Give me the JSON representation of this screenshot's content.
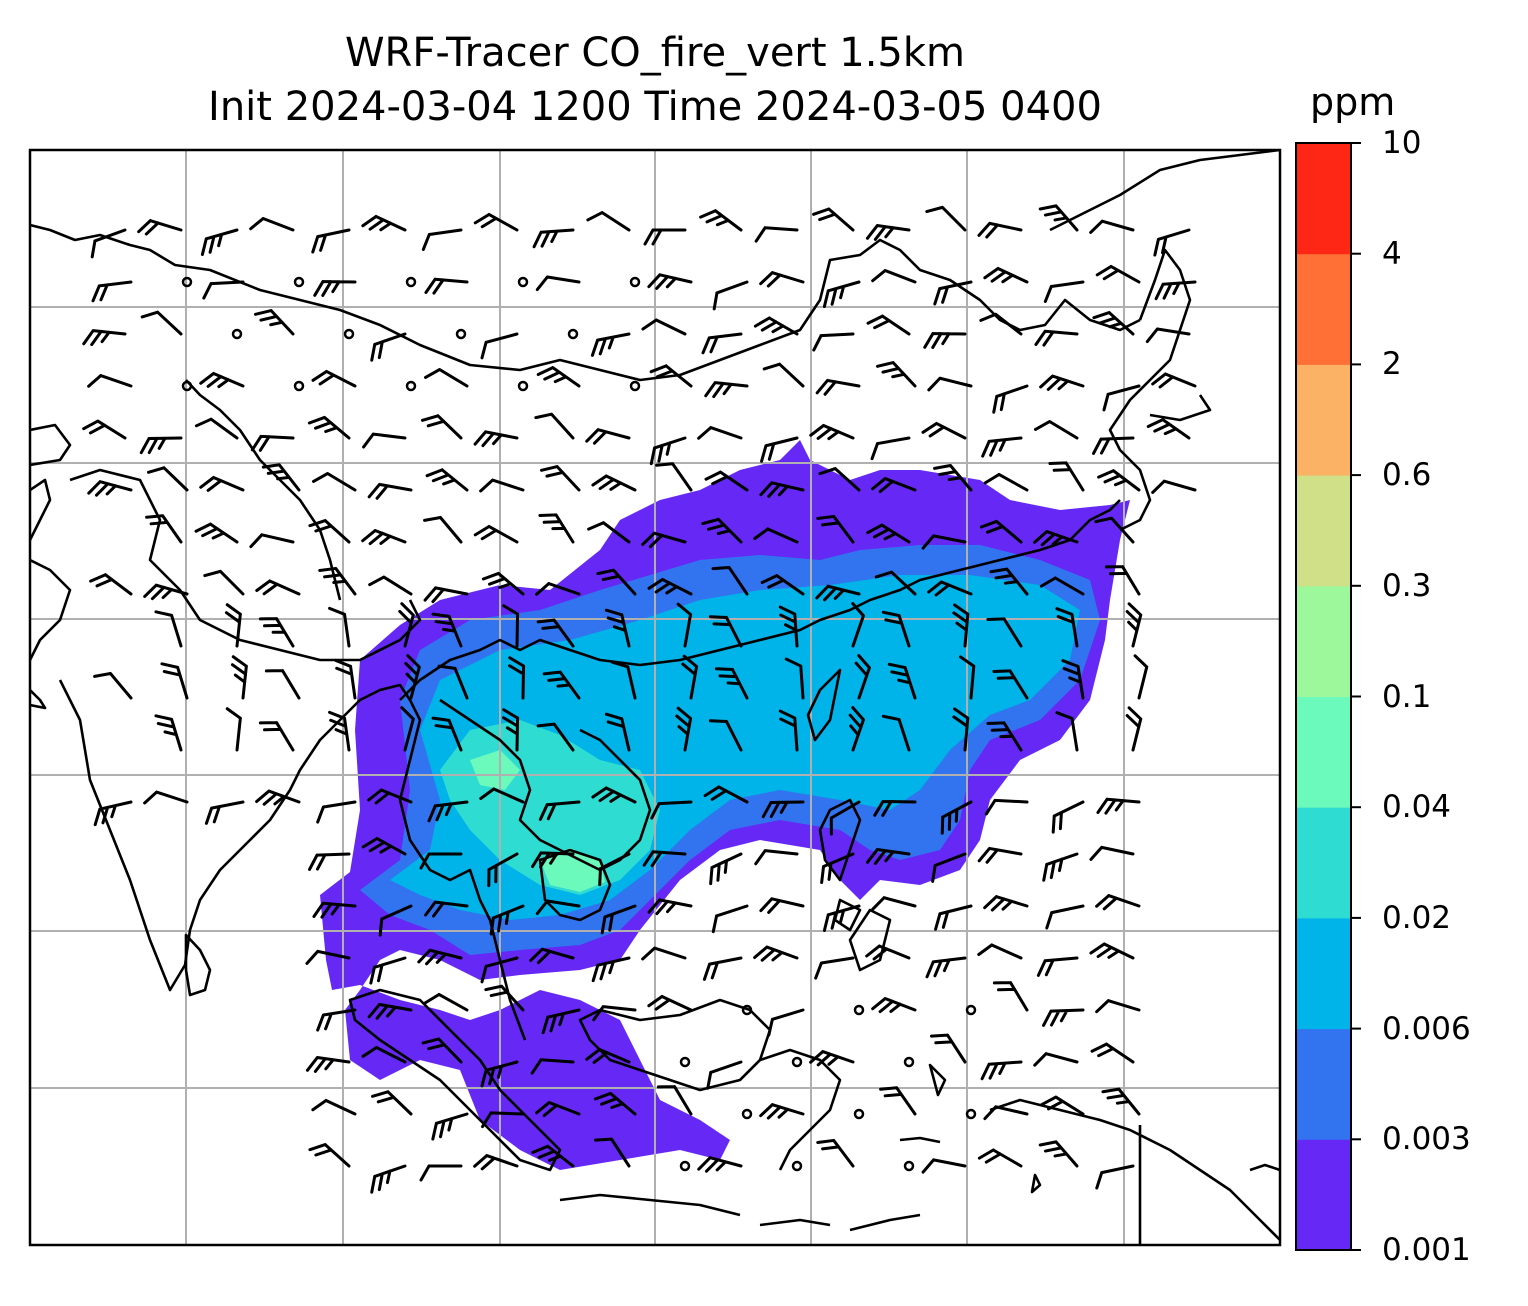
{
  "title": {
    "line1": "WRF-Tracer CO_fire_vert 1.5km",
    "line2": "Init 2024-03-04 1200 Time 2024-03-05 0400"
  },
  "colorbar": {
    "unit": "ppm",
    "levels": [
      "0.001",
      "0.003",
      "0.006",
      "0.02",
      "0.04",
      "0.1",
      "0.3",
      "0.6",
      "2",
      "4",
      "10"
    ],
    "colors": [
      "#6528f5",
      "#3273f0",
      "#00b3e8",
      "#2edcd2",
      "#6bf9bc",
      "#9cf89b",
      "#cfe089",
      "#fbb264",
      "#fe7035",
      "#fe2615"
    ]
  },
  "map": {
    "field": "CO_fire_vert",
    "level": "1.5km",
    "gridlines": true,
    "overlay": "wind barbs",
    "coastlines": true,
    "plume_region": "Indochina and South China Sea",
    "colors": {
      "coastline": "#000000",
      "gridline": "#b0b0b0",
      "barb": "#000000"
    }
  }
}
